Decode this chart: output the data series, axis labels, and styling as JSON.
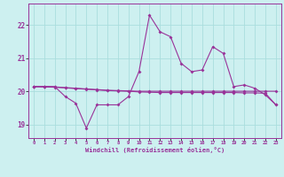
{
  "xlabel": "Windchill (Refroidissement éolien,°C)",
  "background_color": "#cdf0f0",
  "line_color": "#993399",
  "grid_color": "#aadddd",
  "text_color": "#993399",
  "x_ticks": [
    0,
    1,
    2,
    3,
    4,
    5,
    6,
    7,
    8,
    9,
    10,
    11,
    12,
    13,
    14,
    15,
    16,
    17,
    18,
    19,
    20,
    21,
    22,
    23
  ],
  "ylim": [
    18.6,
    22.65
  ],
  "yticks": [
    19,
    20,
    21,
    22
  ],
  "line1_y": [
    20.15,
    20.15,
    20.15,
    19.85,
    19.65,
    18.9,
    19.6,
    19.6,
    19.6,
    19.85,
    20.6,
    22.3,
    21.8,
    21.65,
    20.85,
    20.6,
    20.65,
    21.35,
    21.15,
    20.15,
    20.2,
    20.1,
    19.9,
    19.6
  ],
  "line2_y": [
    20.15,
    20.15,
    20.14,
    20.12,
    20.1,
    20.08,
    20.06,
    20.04,
    20.03,
    20.02,
    20.01,
    20.01,
    20.01,
    20.01,
    20.01,
    20.01,
    20.01,
    20.01,
    20.01,
    20.01,
    20.01,
    20.01,
    20.01,
    20.01
  ],
  "line3_y": [
    20.15,
    20.14,
    20.13,
    20.11,
    20.09,
    20.07,
    20.05,
    20.03,
    20.02,
    20.01,
    19.99,
    19.98,
    19.97,
    19.97,
    19.97,
    19.97,
    19.97,
    19.97,
    19.97,
    19.97,
    19.96,
    19.96,
    19.95,
    19.6
  ]
}
